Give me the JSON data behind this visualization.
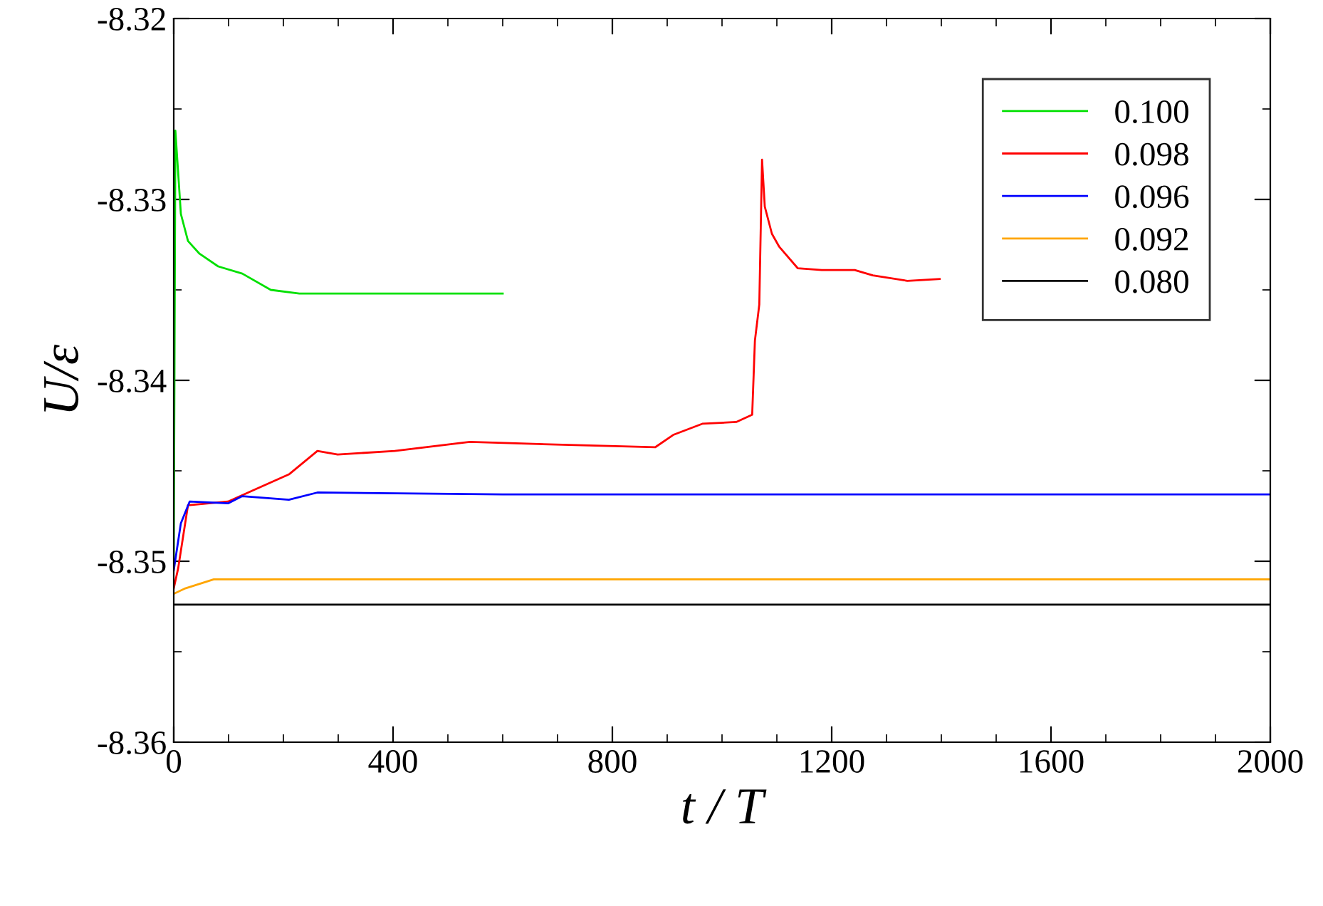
{
  "chart_data": {
    "type": "line",
    "xlabel": "t / T",
    "ylabel": "U/ε",
    "xlim": [
      0,
      2000
    ],
    "xticks": [
      0,
      400,
      800,
      1200,
      1600,
      2000
    ],
    "ylim": [
      -8.36,
      -8.32
    ],
    "yticks": [
      -8.36,
      -8.35,
      -8.34,
      -8.33,
      -8.32
    ],
    "legend": "top right",
    "grid": false,
    "marker": "none",
    "line_style": "solid",
    "series": [
      {
        "name": "0.100",
        "color": "#00e000",
        "x": [
          0,
          3,
          13,
          26,
          47,
          81,
          125,
          177,
          229,
          300,
          400,
          500,
          600
        ],
        "values": [
          -8.35,
          -8.3262,
          -8.3308,
          -8.3323,
          -8.333,
          -8.3337,
          -8.3341,
          -8.335,
          -8.3352,
          -8.3352,
          -8.3352,
          -8.3352,
          -8.3352
        ]
      },
      {
        "name": "0.098",
        "color": "#ff0000",
        "x": [
          0,
          8,
          26,
          99,
          143,
          210,
          262,
          299,
          403,
          540,
          644,
          878,
          912,
          964,
          1026,
          1055,
          1060,
          1068,
          1073,
          1078,
          1091,
          1104,
          1138,
          1182,
          1242,
          1275,
          1338,
          1397
        ],
        "values": [
          -8.3515,
          -8.3504,
          -8.3469,
          -8.3467,
          -8.3461,
          -8.3452,
          -8.3439,
          -8.3441,
          -8.3439,
          -8.3434,
          -8.3435,
          -8.3437,
          -8.343,
          -8.3424,
          -8.3423,
          -8.3419,
          -8.3378,
          -8.3358,
          -8.3278,
          -8.3304,
          -8.3319,
          -8.3326,
          -8.3338,
          -8.3339,
          -8.3339,
          -8.3342,
          -8.3345,
          -8.3344
        ]
      },
      {
        "name": "0.096",
        "color": "#0000ff",
        "x": [
          0,
          13,
          29,
          99,
          125,
          210,
          262,
          600,
          1000,
          1400,
          2000
        ],
        "values": [
          -8.3505,
          -8.3479,
          -8.3467,
          -8.3468,
          -8.3464,
          -8.3466,
          -8.3462,
          -8.3463,
          -8.3463,
          -8.3463,
          -8.3463
        ]
      },
      {
        "name": "0.092",
        "color": "#ffa500",
        "x": [
          0,
          21,
          73,
          262,
          600,
          1000,
          1400,
          2000
        ],
        "values": [
          -8.3518,
          -8.3515,
          -8.351,
          -8.351,
          -8.351,
          -8.351,
          -8.351,
          -8.351
        ]
      },
      {
        "name": "0.080",
        "color": "#000000",
        "x": [
          0,
          500,
          1000,
          1500,
          2000
        ],
        "values": [
          -8.3524,
          -8.3524,
          -8.3524,
          -8.3524,
          -8.3524
        ]
      }
    ]
  }
}
